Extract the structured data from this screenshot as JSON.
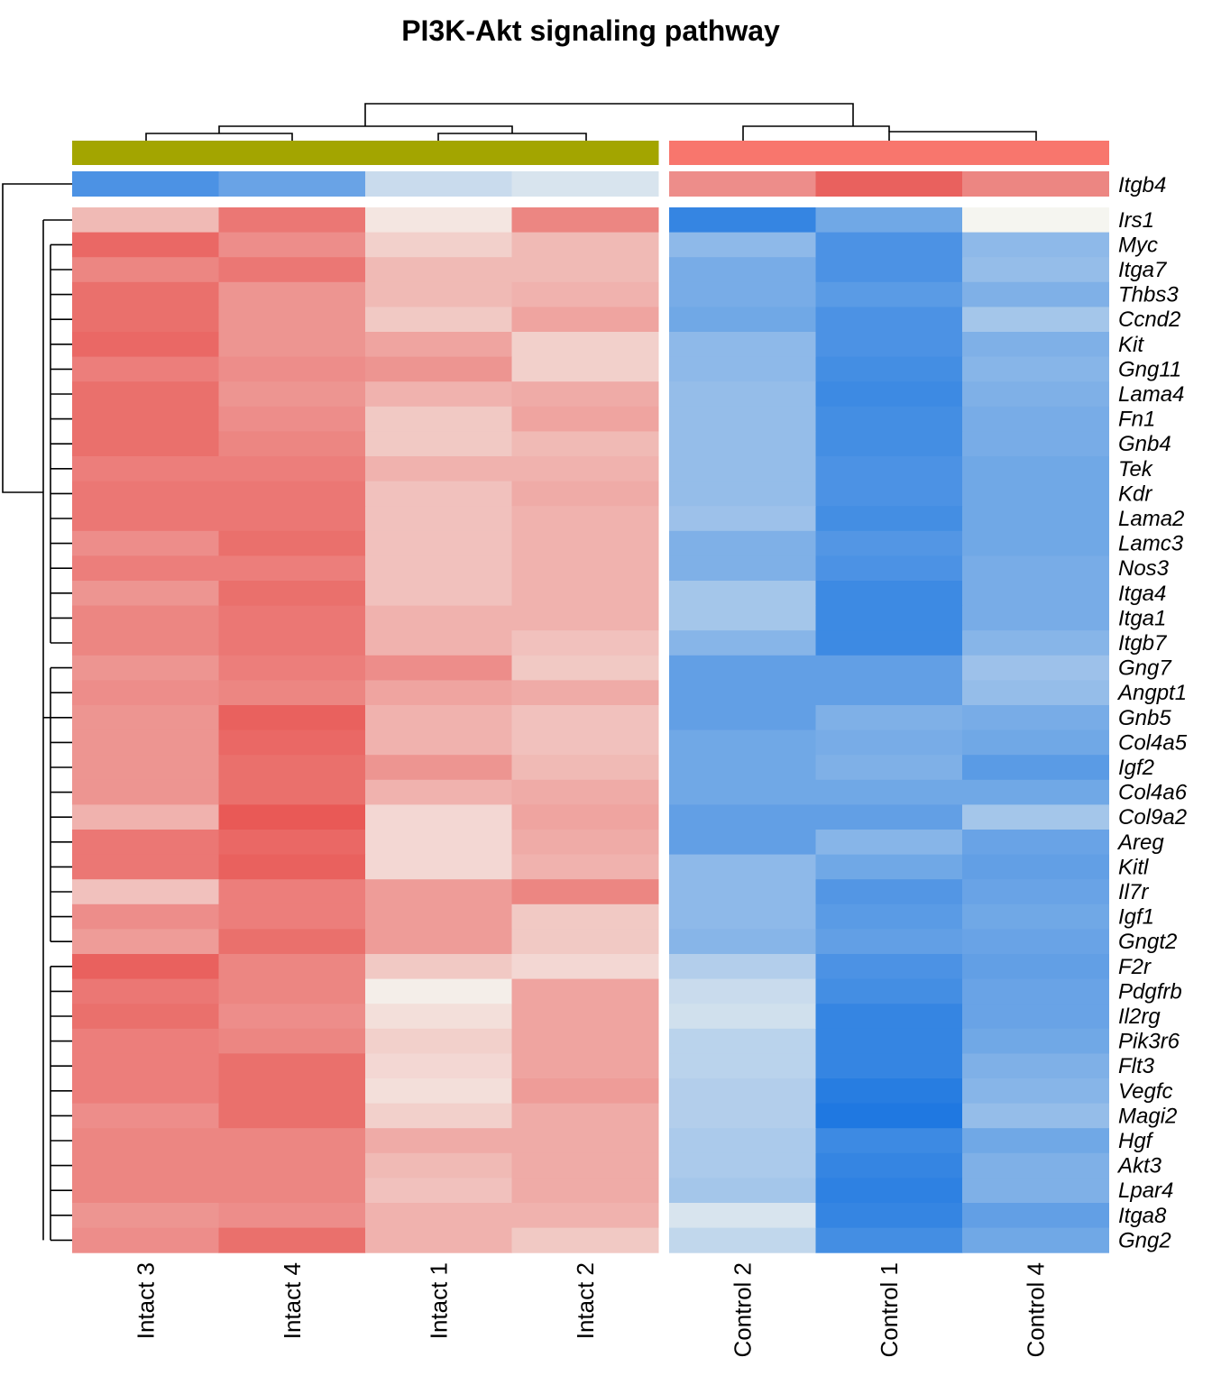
{
  "chart_data": {
    "type": "heatmap",
    "title": "PI3K-Akt signaling pathway",
    "columns": [
      "Intact 3",
      "Intact 4",
      "Intact 1",
      "Intact 2",
      "Control 2",
      "Control 1",
      "Control 4"
    ],
    "column_split": [
      4,
      3
    ],
    "group_annotation": [
      "#A3A500",
      "#A3A500",
      "#A3A500",
      "#A3A500",
      "#F8766D",
      "#F8766D",
      "#F8766D"
    ],
    "annotation_row": {
      "gene": "Itgb4",
      "values": [
        -2.3,
        -1.9,
        -0.6,
        -0.4,
        1.4,
        2.0,
        1.5
      ]
    },
    "rows": [
      "Irs1",
      "Myc",
      "Itga7",
      "Thbs3",
      "Ccnd2",
      "Kit",
      "Gng11",
      "Lama4",
      "Fn1",
      "Gnb4",
      "Tek",
      "Kdr",
      "Lama2",
      "Lamc3",
      "Nos3",
      "Itga4",
      "Itga1",
      "Itgb7",
      "Gng7",
      "Angpt1",
      "Gnb5",
      "Col4a5",
      "Igf2",
      "Col4a6",
      "Col9a2",
      "Areg",
      "Kitl",
      "Il7r",
      "Igf1",
      "Gngt2",
      "F2r",
      "Pdgfrb",
      "Il2rg",
      "Pik3r6",
      "Flt3",
      "Vegfc",
      "Magi2",
      "Hgf",
      "Akt3",
      "Lpar4",
      "Itga8",
      "Gng2"
    ],
    "values": [
      [
        0.8,
        1.7,
        0.2,
        1.5,
        -2.6,
        -1.8,
        0.0
      ],
      [
        1.9,
        1.4,
        0.5,
        0.8,
        -1.4,
        -2.3,
        -1.4
      ],
      [
        1.5,
        1.7,
        0.8,
        0.8,
        -1.7,
        -2.3,
        -1.3
      ],
      [
        1.8,
        1.3,
        0.8,
        0.9,
        -1.7,
        -2.1,
        -1.6
      ],
      [
        1.8,
        1.3,
        0.6,
        1.1,
        -1.8,
        -2.3,
        -1.1
      ],
      [
        1.9,
        1.3,
        1.1,
        0.5,
        -1.4,
        -2.3,
        -1.6
      ],
      [
        1.6,
        1.4,
        1.3,
        0.5,
        -1.4,
        -2.4,
        -1.5
      ],
      [
        1.8,
        1.3,
        0.9,
        1.0,
        -1.3,
        -2.5,
        -1.6
      ],
      [
        1.8,
        1.4,
        0.6,
        1.1,
        -1.3,
        -2.4,
        -1.7
      ],
      [
        1.8,
        1.5,
        0.6,
        0.8,
        -1.3,
        -2.4,
        -1.7
      ],
      [
        1.6,
        1.6,
        0.9,
        0.9,
        -1.3,
        -2.3,
        -1.8
      ],
      [
        1.7,
        1.7,
        0.7,
        1.0,
        -1.3,
        -2.3,
        -1.8
      ],
      [
        1.7,
        1.7,
        0.7,
        0.9,
        -1.2,
        -2.4,
        -1.8
      ],
      [
        1.4,
        1.8,
        0.7,
        0.9,
        -1.6,
        -2.2,
        -1.8
      ],
      [
        1.6,
        1.6,
        0.7,
        0.9,
        -1.6,
        -2.3,
        -1.7
      ],
      [
        1.3,
        1.8,
        0.7,
        0.9,
        -1.1,
        -2.5,
        -1.7
      ],
      [
        1.5,
        1.7,
        0.9,
        0.9,
        -1.1,
        -2.5,
        -1.7
      ],
      [
        1.5,
        1.7,
        0.9,
        0.7,
        -1.5,
        -2.5,
        -1.5
      ],
      [
        1.3,
        1.6,
        1.4,
        0.6,
        -2.0,
        -2.0,
        -1.2
      ],
      [
        1.4,
        1.5,
        1.1,
        1.0,
        -2.0,
        -2.0,
        -1.3
      ],
      [
        1.3,
        2.0,
        0.9,
        0.7,
        -2.0,
        -1.6,
        -1.7
      ],
      [
        1.3,
        1.9,
        0.9,
        0.7,
        -1.8,
        -1.7,
        -1.8
      ],
      [
        1.3,
        1.8,
        1.3,
        0.8,
        -1.8,
        -1.6,
        -2.1
      ],
      [
        1.3,
        1.8,
        0.9,
        1.0,
        -1.8,
        -1.8,
        -1.8
      ],
      [
        0.9,
        2.1,
        0.4,
        1.1,
        -2.0,
        -2.0,
        -1.1
      ],
      [
        1.7,
        1.9,
        0.4,
        1.0,
        -2.0,
        -1.5,
        -1.9
      ],
      [
        1.7,
        2.0,
        0.4,
        0.9,
        -1.4,
        -1.8,
        -2.0
      ],
      [
        0.7,
        1.6,
        1.2,
        1.5,
        -1.4,
        -2.2,
        -1.9
      ],
      [
        1.4,
        1.6,
        1.2,
        0.6,
        -1.4,
        -2.1,
        -1.8
      ],
      [
        1.2,
        1.8,
        1.2,
        0.6,
        -1.5,
        -2.0,
        -1.9
      ],
      [
        2.0,
        1.5,
        0.6,
        0.4,
        -0.9,
        -2.3,
        -2.0
      ],
      [
        1.7,
        1.5,
        0.1,
        1.1,
        -0.6,
        -2.4,
        -1.9
      ],
      [
        1.8,
        1.4,
        0.3,
        1.1,
        -0.5,
        -2.6,
        -1.9
      ],
      [
        1.6,
        1.5,
        0.5,
        1.1,
        -0.8,
        -2.6,
        -1.8
      ],
      [
        1.6,
        1.8,
        0.4,
        1.1,
        -0.8,
        -2.6,
        -1.6
      ],
      [
        1.6,
        1.8,
        0.3,
        1.2,
        -0.9,
        -2.8,
        -1.5
      ],
      [
        1.4,
        1.8,
        0.5,
        1.0,
        -0.9,
        -2.9,
        -1.3
      ],
      [
        1.5,
        1.5,
        1.0,
        1.0,
        -1.0,
        -2.5,
        -1.8
      ],
      [
        1.5,
        1.5,
        0.8,
        1.0,
        -1.0,
        -2.6,
        -1.6
      ],
      [
        1.5,
        1.5,
        0.7,
        1.0,
        -1.1,
        -2.7,
        -1.6
      ],
      [
        1.3,
        1.4,
        0.9,
        0.9,
        -0.4,
        -2.6,
        -2.0
      ],
      [
        1.4,
        1.8,
        0.9,
        0.6,
        -0.7,
        -2.4,
        -1.8
      ]
    ],
    "color_scale": {
      "low": "#1874E0",
      "mid": "#F5F5F0",
      "high": "#E8524F",
      "range": [
        -3,
        2.2
      ]
    },
    "legend": "none"
  }
}
